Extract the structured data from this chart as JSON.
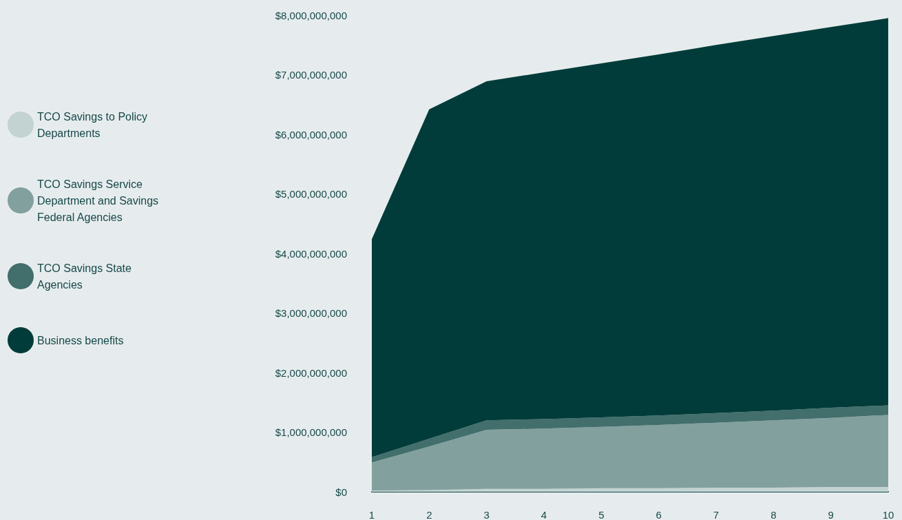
{
  "chart_data": {
    "type": "area",
    "stacked": true,
    "categories": [
      "1",
      "2",
      "3",
      "4",
      "5",
      "6",
      "7",
      "8",
      "9",
      "10"
    ],
    "series": [
      {
        "name": "TCO Savings to Policy Departments",
        "color": "#c2d3d1",
        "values": [
          20000000,
          30000000,
          50000000,
          50000000,
          60000000,
          60000000,
          70000000,
          70000000,
          80000000,
          80000000
        ]
      },
      {
        "name": "TCO Savings Service Department and Savings Federal Agencies",
        "color": "#82a09e",
        "values": [
          470000000,
          730000000,
          990000000,
          1010000000,
          1030000000,
          1060000000,
          1090000000,
          1130000000,
          1160000000,
          1210000000
        ]
      },
      {
        "name": "TCO Savings State Agencies",
        "color": "#426e6b",
        "values": [
          90000000,
          130000000,
          160000000,
          160000000,
          160000000,
          160000000,
          160000000,
          160000000,
          170000000,
          160000000
        ]
      },
      {
        "name": "Business benefits",
        "color": "#013c3a",
        "values": [
          3660000000,
          5530000000,
          5690000000,
          5820000000,
          5940000000,
          6060000000,
          6180000000,
          6290000000,
          6390000000,
          6500000000
        ]
      }
    ],
    "ylim": [
      0,
      8000000000
    ],
    "yticks": [
      {
        "value": 0,
        "label": "$0"
      },
      {
        "value": 1000000000,
        "label": "$1,000,000,000"
      },
      {
        "value": 2000000000,
        "label": "$2,000,000,000"
      },
      {
        "value": 3000000000,
        "label": "$3,000,000,000"
      },
      {
        "value": 4000000000,
        "label": "$4,000,000,000"
      },
      {
        "value": 5000000000,
        "label": "$5,000,000,000"
      },
      {
        "value": 6000000000,
        "label": "$6,000,000,000"
      },
      {
        "value": 7000000000,
        "label": "$7,000,000,000"
      },
      {
        "value": 8000000000,
        "label": "$8,000,000,000"
      }
    ],
    "grid": false,
    "legend": "left",
    "marker": "none"
  }
}
